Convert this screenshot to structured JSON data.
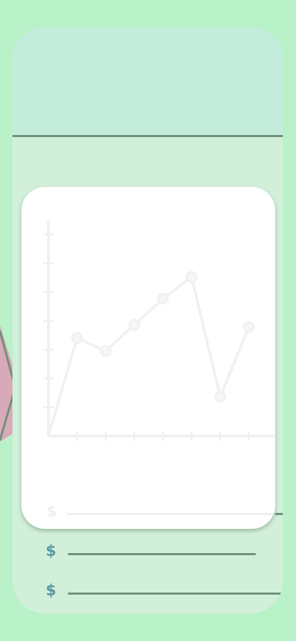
{
  "app": {
    "currency_symbol": "$"
  },
  "colors": {
    "page_background": "#b9f1c9",
    "card_background": "#d2efd9",
    "header_background": "#c4ecdd",
    "line_color": "#6f8f79",
    "currency_color": "#5a9aa4",
    "pink_shape": "#d8a9b7",
    "chart_faint": "#f0f1f0"
  },
  "money_rows": [
    {
      "symbol": "$"
    },
    {
      "symbol": "$"
    }
  ],
  "overlay": {
    "ghost_row_symbol": "$"
  },
  "chart_data": {
    "type": "line",
    "x": [
      0,
      1,
      2,
      3,
      4,
      5,
      6,
      7
    ],
    "series": [
      {
        "values": [
          0,
          4.5,
          3.9,
          5.1,
          6.3,
          7.3,
          1.8,
          5.0
        ]
      }
    ],
    "ylim": [
      0,
      10
    ],
    "grid": false,
    "xlabel": "",
    "ylabel": ""
  }
}
